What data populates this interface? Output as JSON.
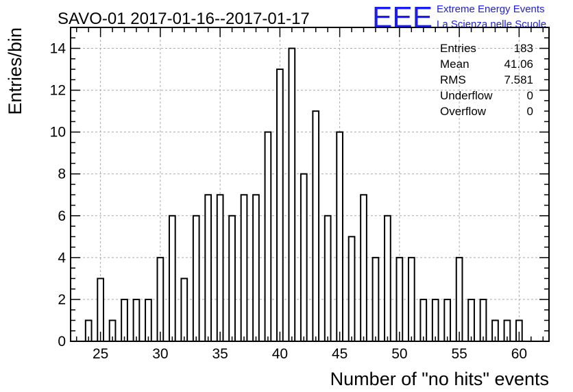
{
  "chart_data": {
    "type": "bar",
    "title": "SAVO-01 2017-01-16--2017-01-17",
    "xlabel": "Number of \"no hits\" events",
    "ylabel": "Entries/bin",
    "xlim": [
      22.5,
      62.5
    ],
    "ylim": [
      0,
      15
    ],
    "x_ticks": [
      25,
      30,
      35,
      40,
      45,
      50,
      55,
      60
    ],
    "y_ticks": [
      0,
      2,
      4,
      6,
      8,
      10,
      12,
      14
    ],
    "grid": true,
    "bins": [
      24,
      25,
      26,
      27,
      28,
      29,
      30,
      31,
      32,
      33,
      34,
      35,
      36,
      37,
      38,
      39,
      40,
      41,
      42,
      43,
      44,
      45,
      46,
      47,
      48,
      49,
      50,
      51,
      52,
      53,
      54,
      55,
      56,
      57,
      58,
      59,
      60
    ],
    "values": [
      1,
      3,
      1,
      2,
      2,
      2,
      4,
      6,
      3,
      6,
      7,
      7,
      6,
      7,
      7,
      10,
      13,
      14,
      8,
      11,
      6,
      10,
      5,
      7,
      4,
      6,
      4,
      4,
      2,
      2,
      2,
      4,
      2,
      2,
      1,
      1,
      1
    ],
    "stats": [
      {
        "label": "Entries",
        "value": "183"
      },
      {
        "label": "Mean",
        "value": "41.06"
      },
      {
        "label": "RMS",
        "value": "7.581"
      },
      {
        "label": "Underflow",
        "value": "0"
      },
      {
        "label": "Overflow",
        "value": "0"
      }
    ]
  },
  "logo": {
    "letters": "EEE",
    "line1": "Extreme Energy Events",
    "line2": "La Scienza nelle Scuole",
    "color": "#1a1aff"
  }
}
